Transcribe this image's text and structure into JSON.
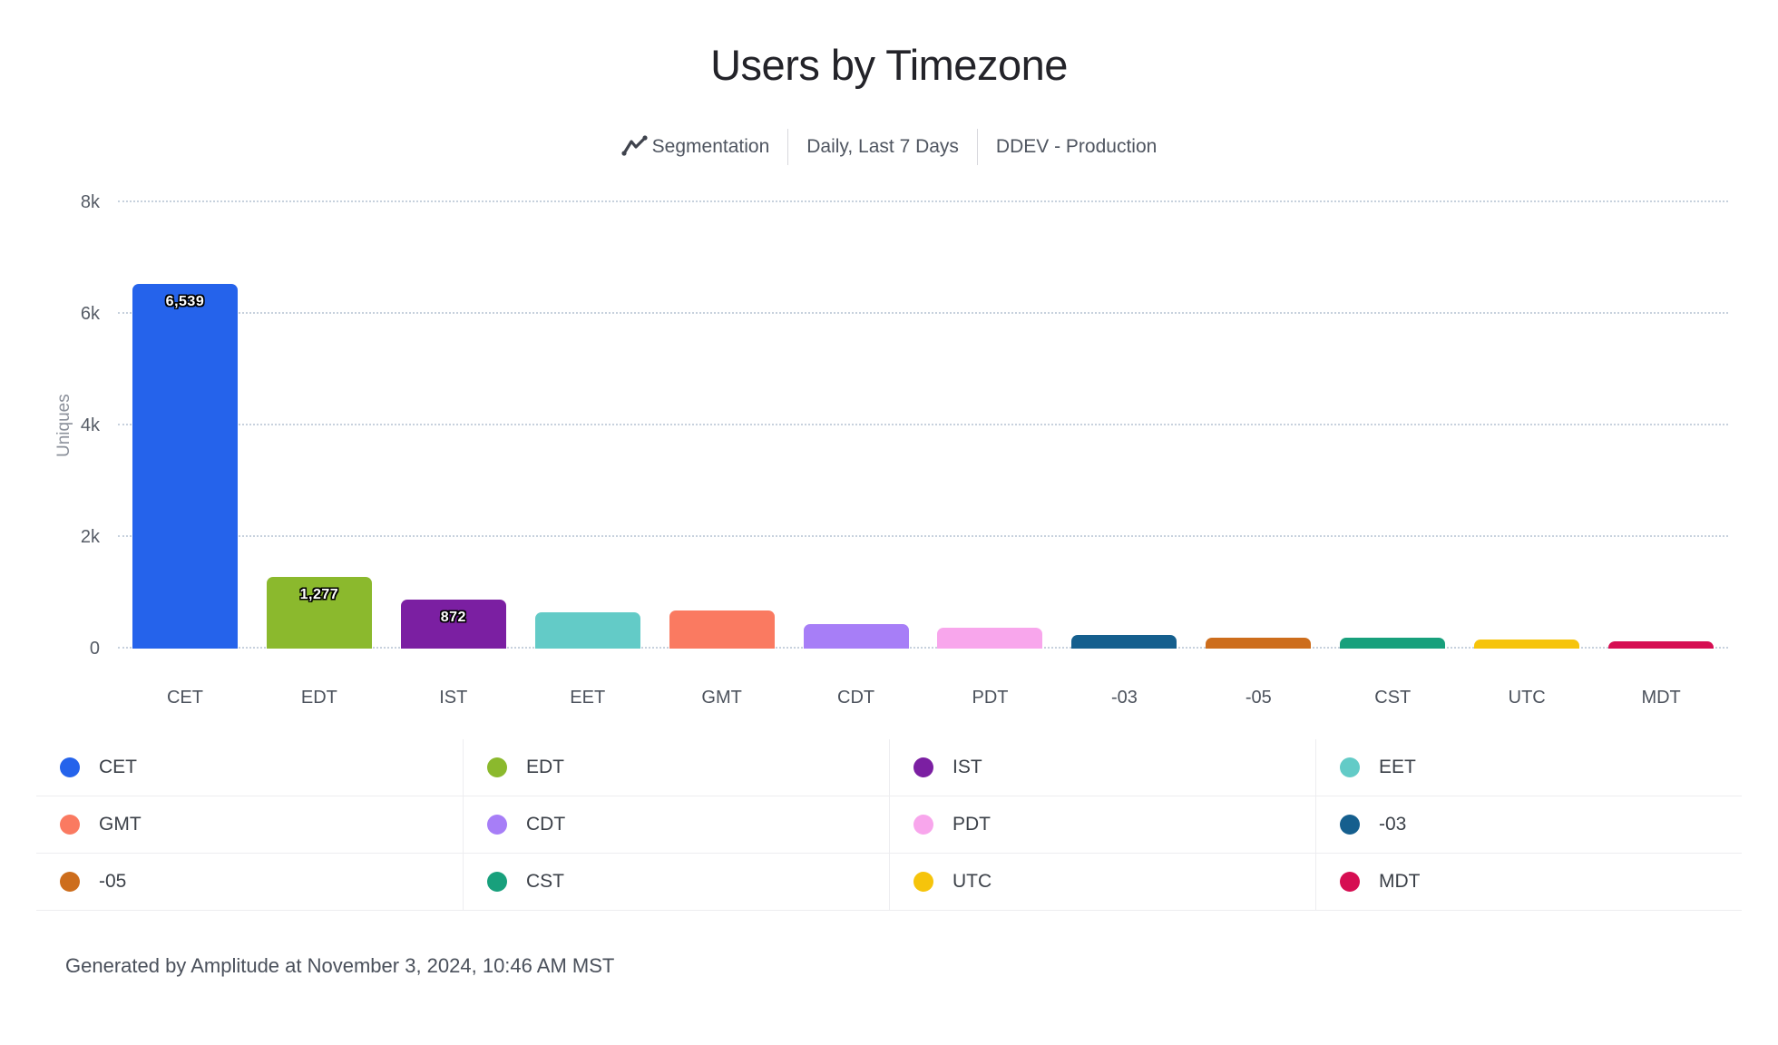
{
  "header": {
    "title": "Users by Timezone",
    "subtitle": {
      "chart_type_label": "Segmentation",
      "date_range_label": "Daily, Last 7 Days",
      "project_label": "DDEV - Production"
    }
  },
  "chart_data": {
    "type": "bar",
    "title": "Users by Timezone",
    "ylabel": "Uniques",
    "ylim": [
      0,
      8000
    ],
    "ytick_labels": [
      "8k",
      "6k",
      "4k",
      "2k",
      "0"
    ],
    "ytick_values": [
      8000,
      6000,
      4000,
      2000,
      0
    ],
    "grid": "dotted horizontal gridlines",
    "legend_position": "bottom 4-column grid",
    "categories": [
      "CET",
      "EDT",
      "IST",
      "EET",
      "GMT",
      "CDT",
      "PDT",
      "-03",
      "-05",
      "CST",
      "UTC",
      "MDT"
    ],
    "series": [
      {
        "name": "Uniques",
        "values": [
          6539,
          1277,
          872,
          650,
          680,
          440,
          370,
          240,
          195,
          195,
          160,
          130
        ]
      }
    ],
    "bar_value_labels": [
      "6,539",
      "1,277",
      "872",
      "",
      "",
      "",
      "",
      "",
      "",
      "",
      "",
      ""
    ],
    "colors": [
      "#2563eb",
      "#8bb92d",
      "#7b1fa2",
      "#63cbc7",
      "#fa7a61",
      "#a77ef7",
      "#f8a6ec",
      "#155f8e",
      "#cd6d1c",
      "#18a07c",
      "#f6c40b",
      "#d60e52"
    ]
  },
  "legend": {
    "items": [
      {
        "label": "CET",
        "color": "#2563eb"
      },
      {
        "label": "EDT",
        "color": "#8bb92d"
      },
      {
        "label": "IST",
        "color": "#7b1fa2"
      },
      {
        "label": "EET",
        "color": "#63cbc7"
      },
      {
        "label": "GMT",
        "color": "#fa7a61"
      },
      {
        "label": "CDT",
        "color": "#a77ef7"
      },
      {
        "label": "PDT",
        "color": "#f8a6ec"
      },
      {
        "label": "-03",
        "color": "#155f8e"
      },
      {
        "label": "-05",
        "color": "#cd6d1c"
      },
      {
        "label": "CST",
        "color": "#18a07c"
      },
      {
        "label": "UTC",
        "color": "#f6c40b"
      },
      {
        "label": "MDT",
        "color": "#d60e52"
      }
    ]
  },
  "footer": {
    "text": "Generated by Amplitude at November 3, 2024, 10:46 AM MST"
  }
}
